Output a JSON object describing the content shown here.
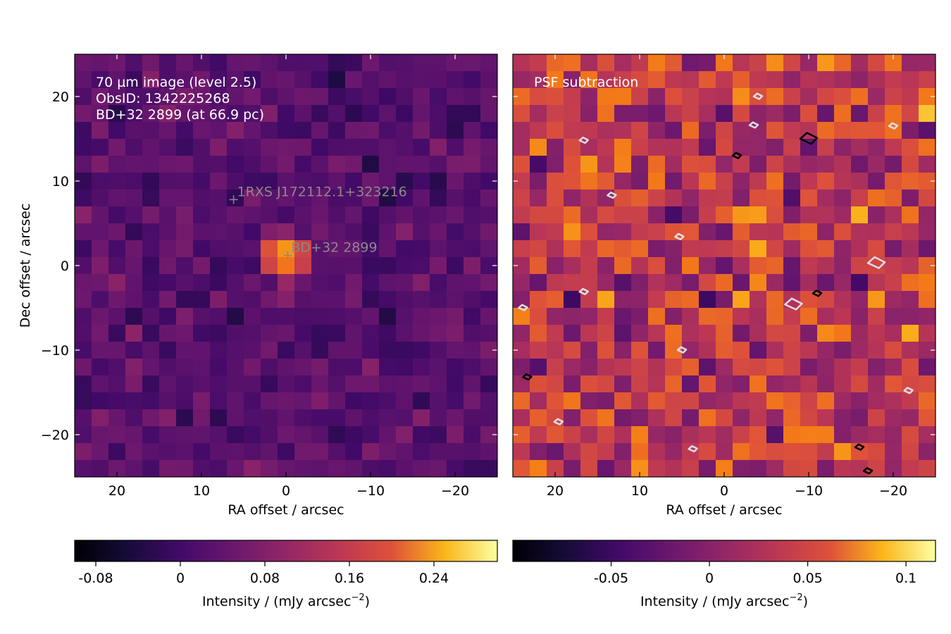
{
  "chart_data": [
    {
      "type": "heatmap",
      "panel": "left",
      "annotations": [
        "70 µm image (level 2.5)",
        "ObsID: 1342225268",
        "BD+32 2899 (at 66.9 pc)"
      ],
      "xlabel": "RA offset / arcsec",
      "ylabel": "Dec offset / arcsec",
      "xlim": [
        25,
        -25
      ],
      "ylim": [
        -25,
        25
      ],
      "xticks": [
        20,
        10,
        0,
        -10,
        -20
      ],
      "yticks": [
        20,
        10,
        0,
        -10,
        -20
      ],
      "xticklabels": [
        "20",
        "10",
        "0",
        "−10",
        "−20"
      ],
      "yticklabels": [
        "20",
        "10",
        "0",
        "−10",
        "−20"
      ],
      "colormap": "inferno",
      "colorbar": {
        "label": "Intensity / (mJy arcsec",
        "label_sup": "−2",
        "label_end": ")",
        "range": [
          -0.1,
          0.3
        ],
        "ticks": [
          -0.08,
          0,
          0.08,
          0.16,
          0.24
        ],
        "ticklabels": [
          "-0.08",
          "0",
          "0.08",
          "0.16",
          "0.24"
        ]
      },
      "peak_intensity": 0.3,
      "source_markers": [
        {
          "label": "1RXS J172112.1+323216",
          "ra": 6.2,
          "dec": 7.8
        },
        {
          "label": "BD+32  2899",
          "ra": -0.2,
          "dec": 1.2
        }
      ]
    },
    {
      "type": "heatmap",
      "panel": "right",
      "annotations": [
        "PSF subtraction"
      ],
      "xlabel": "RA offset / arcsec",
      "xlim": [
        25,
        -25
      ],
      "ylim": [
        -25,
        25
      ],
      "xticks": [
        20,
        10,
        0,
        -10,
        -20
      ],
      "xticklabels": [
        "20",
        "10",
        "0",
        "−10",
        "−20"
      ],
      "colormap": "inferno",
      "colorbar": {
        "label": "Intensity / (mJy arcsec",
        "label_sup": "−2",
        "label_end": ")",
        "range": [
          -0.1,
          0.115
        ],
        "ticks": [
          -0.05,
          0,
          0.05,
          0.1
        ],
        "ticklabels": [
          "-0.05",
          "0",
          "0.05",
          "0.1"
        ]
      },
      "contours": {
        "positive_color": "#000000",
        "negative_color": "#dddde6",
        "positive": [
          {
            "ra": -10.0,
            "dec": 15.0
          },
          {
            "ra": -1.5,
            "dec": 13.0
          },
          {
            "ra": -11.0,
            "dec": -3.3
          },
          {
            "ra": -16.0,
            "dec": -21.5
          },
          {
            "ra": -17.0,
            "dec": -24.3
          },
          {
            "ra": 23.3,
            "dec": -13.2
          }
        ],
        "negative": [
          {
            "ra": -4.0,
            "dec": 20.0
          },
          {
            "ra": -3.5,
            "dec": 16.6
          },
          {
            "ra": 16.6,
            "dec": 14.8
          },
          {
            "ra": -20.0,
            "dec": 16.5
          },
          {
            "ra": 13.3,
            "dec": 8.3
          },
          {
            "ra": 5.3,
            "dec": 3.4
          },
          {
            "ra": -18.0,
            "dec": 0.3
          },
          {
            "ra": 16.6,
            "dec": -3.1
          },
          {
            "ra": -8.2,
            "dec": -4.6
          },
          {
            "ra": 23.8,
            "dec": -5.0
          },
          {
            "ra": 5.0,
            "dec": -10.0
          },
          {
            "ra": -21.8,
            "dec": -14.8
          },
          {
            "ra": 19.6,
            "dec": -18.5
          },
          {
            "ra": 3.7,
            "dec": -21.7
          }
        ]
      }
    }
  ]
}
